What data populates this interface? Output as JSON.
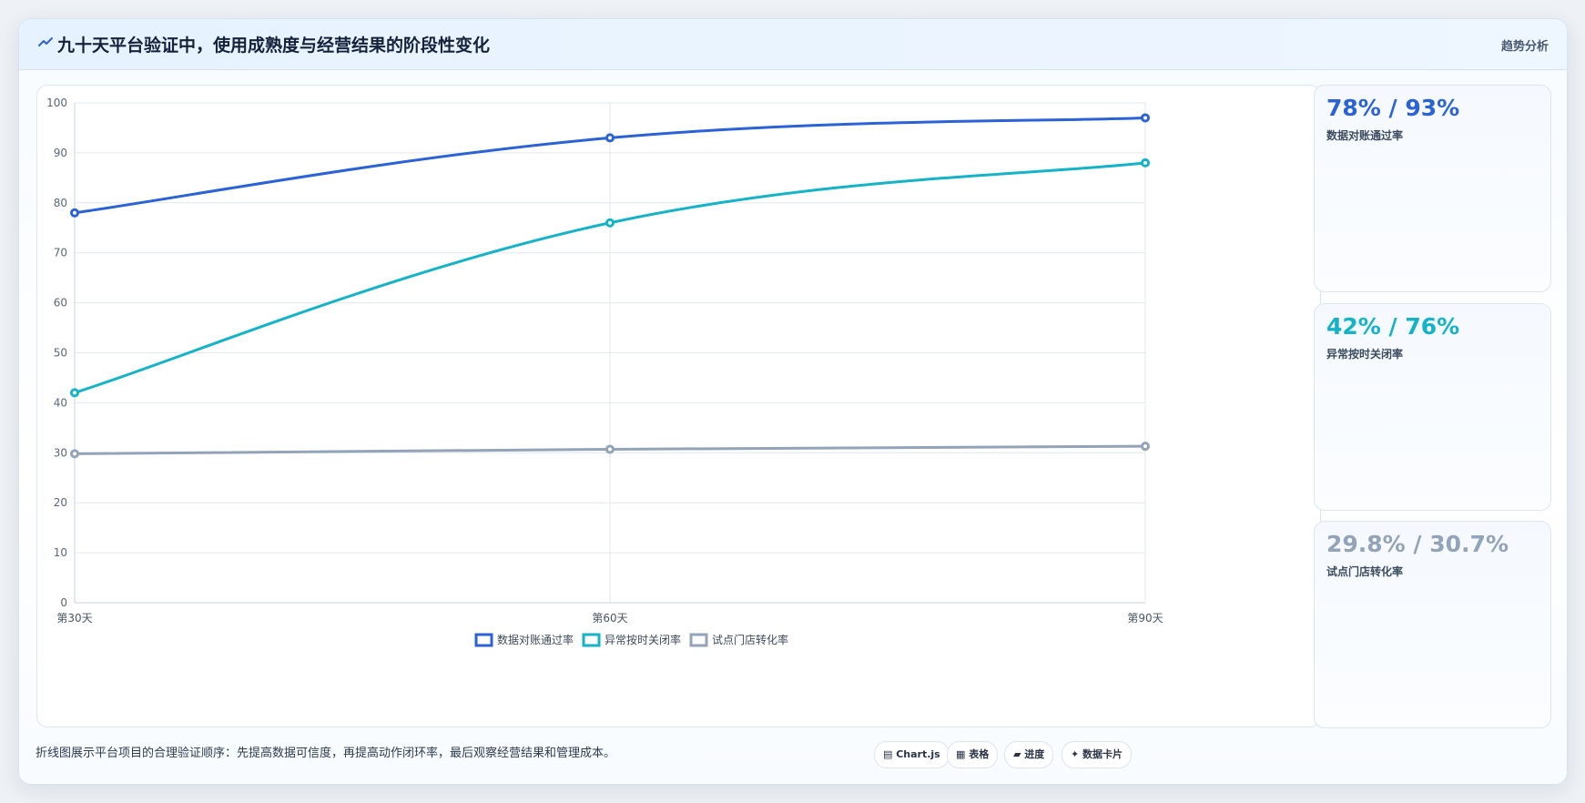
{
  "header": {
    "title": "九十天平台验证中，使用成熟度与经营结果的阶段性变化",
    "tag": "趋势分析",
    "icon": "trend-icon"
  },
  "kpis": [
    {
      "value": "78% / 93%",
      "label": "数据对账通过率",
      "color": "#2b62d6"
    },
    {
      "value": "42% / 76%",
      "label": "异常按时关闭率",
      "color": "#14b3c7"
    },
    {
      "value": "29.8% / 30.7%",
      "label": "试点门店转化率",
      "color": "#93a3b8"
    }
  ],
  "footer": {
    "note": "折线图展示平台项目的合理验证顺序：先提高数据可信度，再提高动作闭环率，最后观察经营结果和管理成本。",
    "chips": [
      "▤ Chart.js",
      "▦ 表格",
      "▰ 进度",
      "✦ 数据卡片"
    ]
  },
  "chart_data": {
    "type": "line",
    "x": [
      "第30天",
      "第60天",
      "第90天"
    ],
    "ylim": [
      0,
      100
    ],
    "yticks": [
      0,
      10,
      20,
      30,
      40,
      50,
      60,
      70,
      80,
      90,
      100
    ],
    "grid": true,
    "legend_position": "bottom",
    "series": [
      {
        "name": "数据对账通过率",
        "values": [
          78,
          93,
          97
        ],
        "color": "#2b62d6"
      },
      {
        "name": "异常按时关闭率",
        "values": [
          42,
          76,
          88
        ],
        "color": "#14b3c7"
      },
      {
        "name": "试点门店转化率",
        "values": [
          29.8,
          30.7,
          31.3
        ],
        "color": "#93a3b8"
      }
    ]
  }
}
